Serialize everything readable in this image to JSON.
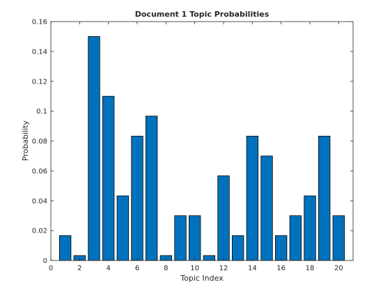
{
  "chart_data": {
    "type": "bar",
    "title": "Document 1 Topic Probabilities",
    "xlabel": "Topic Index",
    "ylabel": "Probability",
    "categories": [
      1,
      2,
      3,
      4,
      5,
      6,
      7,
      8,
      9,
      10,
      11,
      12,
      13,
      14,
      15,
      16,
      17,
      18,
      19,
      20
    ],
    "values": [
      0.0167,
      0.0033,
      0.15,
      0.11,
      0.0433,
      0.0833,
      0.0967,
      0.0033,
      0.03,
      0.03,
      0.0033,
      0.0567,
      0.0167,
      0.0833,
      0.07,
      0.0167,
      0.03,
      0.0433,
      0.0833,
      0.03
    ],
    "xlim": [
      0,
      21
    ],
    "ylim": [
      0,
      0.16
    ],
    "xticks": [
      0,
      2,
      4,
      6,
      8,
      10,
      12,
      14,
      16,
      18,
      20
    ],
    "yticks": [
      0,
      0.02,
      0.04,
      0.06,
      0.08,
      0.1,
      0.12,
      0.14,
      0.16
    ],
    "xtick_labels": [
      "0",
      "2",
      "4",
      "6",
      "8",
      "10",
      "12",
      "14",
      "16",
      "18",
      "20"
    ],
    "ytick_labels": [
      "0",
      "0.02",
      "0.04",
      "0.06",
      "0.08",
      "0.1",
      "0.12",
      "0.14",
      "0.16"
    ],
    "bar_color": "#0072BD",
    "edge_color": "#000000",
    "grid": false,
    "legend": "none"
  }
}
